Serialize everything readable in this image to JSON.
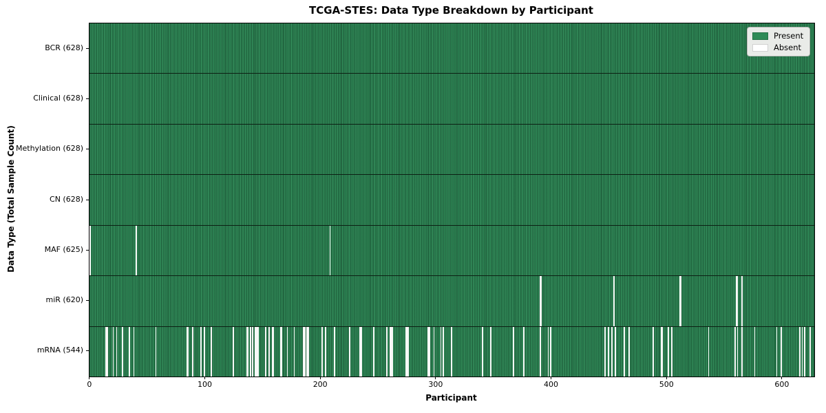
{
  "title": "TCGA-STES: Data Type Breakdown by Participant",
  "legend": {
    "present_label": "Present",
    "absent_label": "Absent"
  },
  "chart_data": {
    "type": "heatmap",
    "title": "TCGA-STES: Data Type Breakdown by Participant",
    "xlabel": "Participant",
    "ylabel": "Data Type (Total Sample Count)",
    "x_ticks": [
      0,
      100,
      200,
      300,
      400,
      500,
      600
    ],
    "x_range": [
      0,
      628
    ],
    "total_participants": 628,
    "grid": false,
    "legend_position": "upper right",
    "legend_entries": [
      {
        "label": "Present",
        "color": "#2e8b57"
      },
      {
        "label": "Absent",
        "color": "#ffffff"
      }
    ],
    "colors": {
      "present": "#2e8b57",
      "absent": "#f7f8f7",
      "bar_edge": "#0c1f13"
    },
    "rows": [
      {
        "label": "BCR (628)",
        "data_type": "BCR",
        "present_count": 628,
        "absent_count": 0,
        "absent_participants": []
      },
      {
        "label": "Clinical (628)",
        "data_type": "Clinical",
        "present_count": 628,
        "absent_count": 0,
        "absent_participants": []
      },
      {
        "label": "Methylation (628)",
        "data_type": "Methylation",
        "present_count": 628,
        "absent_count": 0,
        "absent_participants": []
      },
      {
        "label": "CN (628)",
        "data_type": "CN",
        "present_count": 628,
        "absent_count": 0,
        "absent_participants": []
      },
      {
        "label": "MAF (625)",
        "data_type": "MAF",
        "present_count": 625,
        "absent_count": 3,
        "absent_participants": [
          0,
          40,
          208
        ]
      },
      {
        "label": "miR (620)",
        "data_type": "miR",
        "present_count": 620,
        "absent_count": 8,
        "absent_participants": [
          390,
          391,
          454,
          511,
          512,
          560,
          561,
          565
        ]
      },
      {
        "label": "mRNA (544)",
        "data_type": "mRNA",
        "present_count": 544,
        "absent_count": 84,
        "absent_participants": [
          14,
          15,
          20,
          23,
          28,
          34,
          38,
          57,
          84,
          85,
          89,
          96,
          99,
          105,
          124,
          136,
          137,
          139,
          141,
          143,
          144,
          145,
          146,
          152,
          155,
          158,
          159,
          165,
          166,
          171,
          177,
          185,
          186,
          188,
          189,
          201,
          204,
          212,
          225,
          234,
          235,
          246,
          257,
          260,
          261,
          262,
          274,
          275,
          276,
          293,
          294,
          298,
          304,
          306,
          313,
          340,
          347,
          367,
          376,
          390,
          397,
          399,
          446,
          449,
          452,
          455,
          463,
          467,
          488,
          495,
          496,
          501,
          504,
          536,
          559,
          561,
          565,
          576,
          595,
          599,
          615,
          617,
          619,
          624
        ]
      }
    ]
  }
}
